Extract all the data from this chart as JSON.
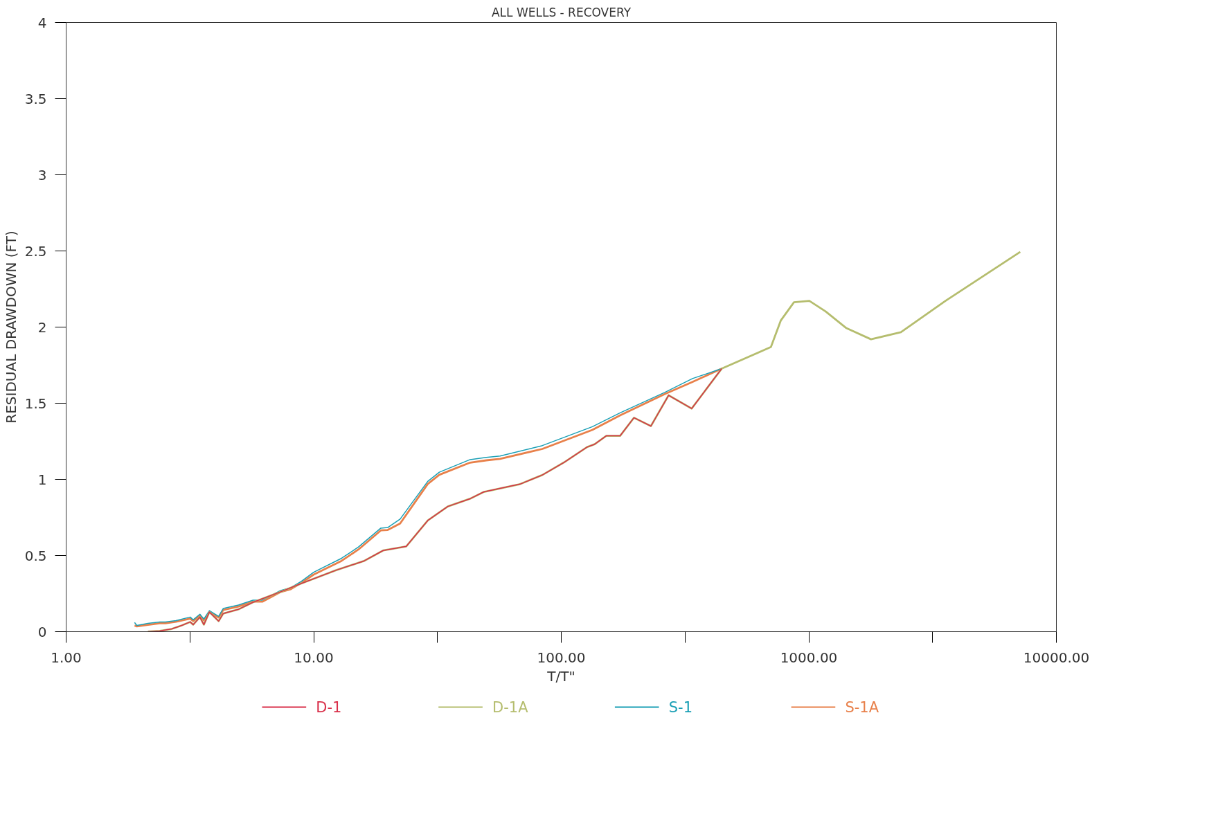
{
  "chart_data": {
    "type": "line",
    "title": "ALL WELLS - RECOVERY",
    "xlabel": "T/T\"",
    "ylabel": "RESIDUAL DRAWDOWN (FT)",
    "log": "x",
    "grid": false,
    "legend": "bottom",
    "line_style": "solid",
    "marker": "none",
    "xlim": [
      1,
      10000
    ],
    "xticks": [
      {
        "value": 1,
        "label": "1.00"
      },
      {
        "value": 3.162,
        "label": null
      },
      {
        "value": 10,
        "label": "10.00"
      },
      {
        "value": 31.62,
        "label": null
      },
      {
        "value": 100,
        "label": "100.00"
      },
      {
        "value": 316.2,
        "label": null
      },
      {
        "value": 1000,
        "label": "1000.00"
      },
      {
        "value": 3162,
        "label": null
      },
      {
        "value": 10000,
        "label": "10000.00"
      }
    ],
    "ylim": [
      0,
      4
    ],
    "yticks": [
      0,
      0.5,
      1,
      1.5,
      2,
      2.5,
      3,
      3.5,
      4
    ],
    "series": [
      {
        "name": "D-1",
        "color": "#d9304a",
        "x": [
          2.14,
          2.39,
          2.67,
          2.93,
          3.17,
          3.26,
          3.47,
          3.6,
          3.79,
          4.13,
          4.31,
          4.97,
          5.69,
          7.36,
          8.93,
          12.33,
          15.95,
          19.08,
          23.65,
          28.89,
          34.81,
          42.83,
          48.72,
          68.2,
          83.9,
          102.5,
          127.1,
          136.5,
          152,
          172.9,
          196.7,
          230.2,
          271.4,
          336.4,
          444.6
        ],
        "values": [
          0.0,
          0.005,
          0.018,
          0.041,
          0.064,
          0.046,
          0.096,
          0.046,
          0.129,
          0.069,
          0.119,
          0.147,
          0.193,
          0.262,
          0.317,
          0.404,
          0.464,
          0.533,
          0.56,
          0.73,
          0.822,
          0.873,
          0.918,
          0.969,
          1.029,
          1.111,
          1.212,
          1.231,
          1.286,
          1.286,
          1.405,
          1.35,
          1.552,
          1.465,
          1.727
        ]
      },
      {
        "name": "D-1A",
        "color": "#b5bd6e",
        "x": [
          2.14,
          2.39,
          2.67,
          2.93,
          3.17,
          3.26,
          3.47,
          3.6,
          3.79,
          4.13,
          4.31,
          4.97,
          5.69,
          7.36,
          8.93,
          12.33,
          15.95,
          19.08,
          23.65,
          28.89,
          34.81,
          42.83,
          48.72,
          68.2,
          83.9,
          102.5,
          127.1,
          136.5,
          152,
          172.9,
          196.7,
          230.2,
          271.4,
          336.4,
          444.6,
          703,
          771,
          871,
          1005,
          1169,
          1419,
          1783,
          2355,
          3565,
          7145
        ],
        "values": [
          0.0,
          0.005,
          0.018,
          0.041,
          0.064,
          0.046,
          0.096,
          0.046,
          0.129,
          0.069,
          0.119,
          0.147,
          0.193,
          0.262,
          0.317,
          0.404,
          0.464,
          0.533,
          0.56,
          0.73,
          0.822,
          0.873,
          0.918,
          0.969,
          1.029,
          1.111,
          1.212,
          1.231,
          1.286,
          1.286,
          1.405,
          1.35,
          1.552,
          1.465,
          1.727,
          1.869,
          2.044,
          2.163,
          2.172,
          2.103,
          1.993,
          1.92,
          1.966,
          2.172,
          2.494
        ]
      },
      {
        "name": "S-1",
        "color": "#1a9fb5",
        "x": [
          1.89,
          1.93,
          2.14,
          2.39,
          2.52,
          2.78,
          3.17,
          3.26,
          3.47,
          3.6,
          3.79,
          4.13,
          4.31,
          4.97,
          5.69,
          6.2,
          7.36,
          8.08,
          8.93,
          10.0,
          12.96,
          15.17,
          18.67,
          19.91,
          22.34,
          28.89,
          32.17,
          42.83,
          49.78,
          56.61,
          83.9,
          133.6,
          172.9,
          261.8,
          338.8,
          444.6
        ],
        "values": [
          0.06,
          0.041,
          0.055,
          0.064,
          0.064,
          0.073,
          0.096,
          0.078,
          0.115,
          0.083,
          0.138,
          0.101,
          0.152,
          0.175,
          0.207,
          0.207,
          0.271,
          0.289,
          0.331,
          0.39,
          0.482,
          0.556,
          0.68,
          0.684,
          0.739,
          0.987,
          1.047,
          1.13,
          1.144,
          1.153,
          1.222,
          1.346,
          1.437,
          1.571,
          1.662,
          1.727
        ]
      },
      {
        "name": "S-1A",
        "color": "#e8804a",
        "x": [
          1.89,
          1.93,
          2.14,
          2.39,
          2.52,
          2.78,
          3.17,
          3.26,
          3.47,
          3.6,
          3.79,
          4.13,
          4.31,
          4.97,
          5.69,
          6.2,
          7.36,
          8.08,
          8.93,
          10.0,
          12.96,
          15.17,
          18.67,
          19.91,
          22.34,
          28.89,
          32.17,
          42.83,
          49.78,
          56.61,
          83.9,
          133.6,
          172.9,
          261.8,
          338.8,
          444.6
        ],
        "values": [
          0.04,
          0.035,
          0.045,
          0.055,
          0.055,
          0.065,
          0.086,
          0.07,
          0.105,
          0.075,
          0.128,
          0.093,
          0.142,
          0.165,
          0.197,
          0.197,
          0.261,
          0.279,
          0.321,
          0.375,
          0.465,
          0.54,
          0.665,
          0.668,
          0.71,
          0.97,
          1.03,
          1.11,
          1.125,
          1.135,
          1.2,
          1.325,
          1.42,
          1.56,
          1.64,
          1.727
        ]
      }
    ]
  }
}
